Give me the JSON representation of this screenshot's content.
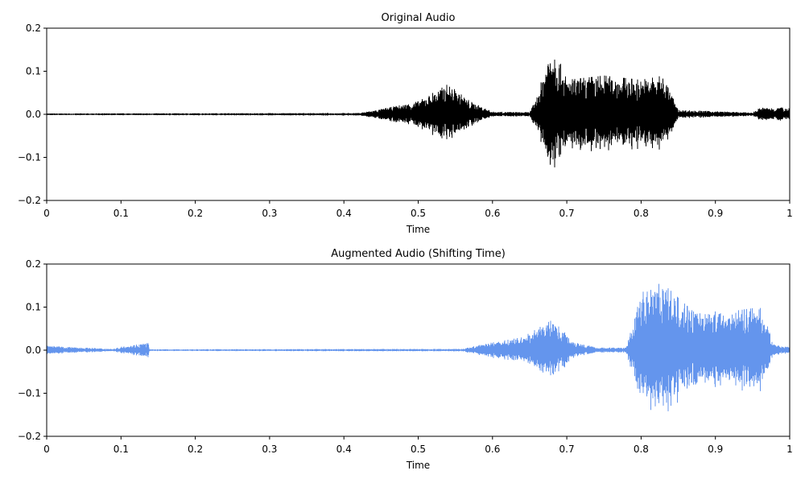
{
  "chart_data": [
    {
      "type": "line",
      "title": "Original Audio",
      "xlabel": "Time",
      "ylabel": "",
      "xlim": [
        0,
        1
      ],
      "ylim": [
        -0.2,
        0.2
      ],
      "xticks": [
        "0",
        "0.1",
        "0.2",
        "0.3",
        "0.4",
        "0.5",
        "0.6",
        "0.7",
        "0.8",
        "0.9",
        "1"
      ],
      "yticks": [
        "0.2",
        "0.1",
        "0.0",
        "−0.1",
        "−0.2"
      ],
      "color": "#000000",
      "envelope": {
        "x": [
          0,
          0.42,
          0.45,
          0.5,
          0.54,
          0.57,
          0.6,
          0.65,
          0.66,
          0.68,
          0.7,
          0.75,
          0.8,
          0.83,
          0.85,
          0.95,
          0.96,
          1.0
        ],
        "amp": [
          0.002,
          0.003,
          0.012,
          0.03,
          0.07,
          0.03,
          0.006,
          0.005,
          0.04,
          0.17,
          0.08,
          0.09,
          0.08,
          0.09,
          0.01,
          0.004,
          0.015,
          0.016
        ]
      },
      "grid": false
    },
    {
      "type": "line",
      "title": "Augmented Audio (Shifting Time)",
      "xlabel": "Time",
      "ylabel": "",
      "xlim": [
        0,
        1
      ],
      "ylim": [
        -0.2,
        0.2
      ],
      "xticks": [
        "0",
        "0.1",
        "0.2",
        "0.3",
        "0.4",
        "0.5",
        "0.6",
        "0.7",
        "0.8",
        "0.9",
        "1"
      ],
      "yticks": [
        "0.2",
        "0.1",
        "0.0",
        "−0.1",
        "−0.2"
      ],
      "color": "#6495ED",
      "envelope": {
        "x": [
          0,
          0.02,
          0.09,
          0.1,
          0.137,
          0.138,
          0.56,
          0.59,
          0.64,
          0.68,
          0.71,
          0.74,
          0.78,
          0.8,
          0.82,
          0.87,
          0.92,
          0.96,
          0.98,
          1.0
        ],
        "amp": [
          0.012,
          0.008,
          0.003,
          0.008,
          0.018,
          0.002,
          0.003,
          0.015,
          0.03,
          0.07,
          0.02,
          0.006,
          0.006,
          0.13,
          0.17,
          0.09,
          0.09,
          0.1,
          0.012,
          0.008
        ]
      },
      "grid": false
    }
  ]
}
